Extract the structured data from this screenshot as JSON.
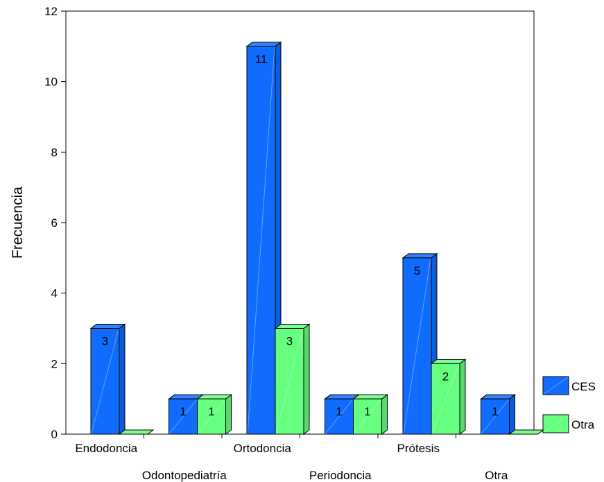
{
  "chart_data": {
    "type": "bar",
    "style": "3d-clustered",
    "categories": [
      "Endodoncia",
      "Odontopediatría",
      "Ortodoncia",
      "Periodoncia",
      "Prótesis",
      "Otra"
    ],
    "series": [
      {
        "name": "CES",
        "color": "#0f6cff",
        "values": [
          3,
          1,
          11,
          1,
          5,
          1
        ]
      },
      {
        "name": "Otra",
        "color": "#66ff7f",
        "values": [
          0,
          1,
          3,
          1,
          2,
          0
        ]
      }
    ],
    "data_labels": [
      [
        "3",
        "1",
        "11",
        "1",
        "5",
        "1"
      ],
      [
        "",
        "1",
        "3",
        "1",
        "2",
        ""
      ]
    ],
    "ylabel": "Frecuencia",
    "xlabel": "",
    "ylim": [
      0,
      12
    ],
    "yticks": [
      0,
      2,
      4,
      6,
      8,
      10,
      12
    ],
    "grid": false,
    "legend": "right"
  }
}
